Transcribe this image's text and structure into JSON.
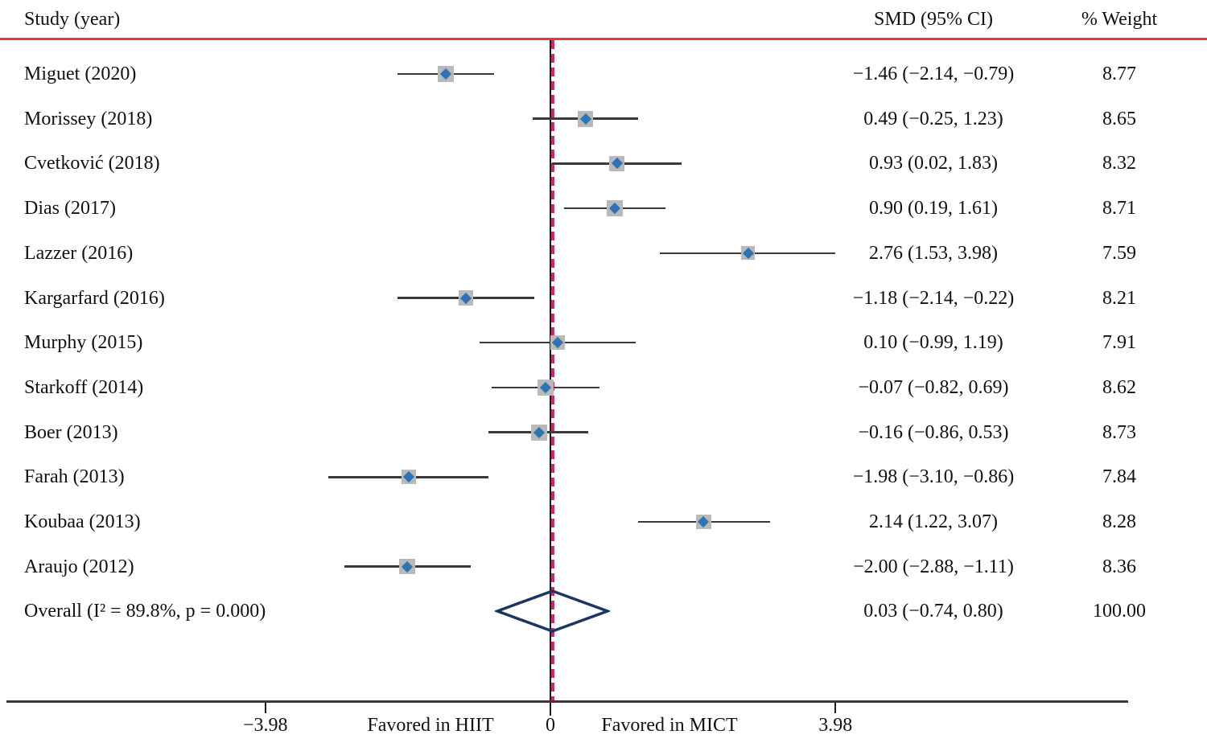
{
  "chart_data": {
    "type": "forest",
    "title": "",
    "columns": {
      "study": "Study (year)",
      "smd": "SMD (95% CI)",
      "weight": "% Weight"
    },
    "axis": {
      "min": -3.98,
      "max": 3.98,
      "zero_line": 0,
      "ticks": [
        {
          "value": -3.98,
          "label": "−3.98"
        },
        {
          "value": 0,
          "label": "0"
        },
        {
          "value": 3.98,
          "label": "3.98"
        }
      ],
      "left_region_label": "Favored in HIIT",
      "right_region_label": "Favored in MICT"
    },
    "studies": [
      {
        "label": "Miguet (2020)",
        "smd": -1.46,
        "ci_low": -2.14,
        "ci_high": -0.79,
        "smd_text": "−1.46 (−2.14, −0.79)",
        "weight": 8.77,
        "weight_text": "8.77"
      },
      {
        "label": "Morissey (2018)",
        "smd": 0.49,
        "ci_low": -0.25,
        "ci_high": 1.23,
        "smd_text": "0.49 (−0.25, 1.23)",
        "weight": 8.65,
        "weight_text": "8.65"
      },
      {
        "label": "Cvetković (2018)",
        "smd": 0.93,
        "ci_low": 0.02,
        "ci_high": 1.83,
        "smd_text": "0.93 (0.02, 1.83)",
        "weight": 8.32,
        "weight_text": "8.32"
      },
      {
        "label": "Dias (2017)",
        "smd": 0.9,
        "ci_low": 0.19,
        "ci_high": 1.61,
        "smd_text": "0.90 (0.19, 1.61)",
        "weight": 8.71,
        "weight_text": "8.71"
      },
      {
        "label": "Lazzer (2016)",
        "smd": 2.76,
        "ci_low": 1.53,
        "ci_high": 3.98,
        "smd_text": "2.76 (1.53, 3.98)",
        "weight": 7.59,
        "weight_text": "7.59"
      },
      {
        "label": "Kargarfard (2016)",
        "smd": -1.18,
        "ci_low": -2.14,
        "ci_high": -0.22,
        "smd_text": "−1.18 (−2.14, −0.22)",
        "weight": 8.21,
        "weight_text": "8.21"
      },
      {
        "label": "Murphy (2015)",
        "smd": 0.1,
        "ci_low": -0.99,
        "ci_high": 1.19,
        "smd_text": "0.10 (−0.99, 1.19)",
        "weight": 7.91,
        "weight_text": "7.91"
      },
      {
        "label": "Starkoff (2014)",
        "smd": -0.07,
        "ci_low": -0.82,
        "ci_high": 0.69,
        "smd_text": "−0.07 (−0.82, 0.69)",
        "weight": 8.62,
        "weight_text": "8.62"
      },
      {
        "label": "Boer (2013)",
        "smd": -0.16,
        "ci_low": -0.86,
        "ci_high": 0.53,
        "smd_text": "−0.16 (−0.86, 0.53)",
        "weight": 8.73,
        "weight_text": "8.73"
      },
      {
        "label": "Farah (2013)",
        "smd": -1.98,
        "ci_low": -3.1,
        "ci_high": -0.86,
        "smd_text": "−1.98 (−3.10, −0.86)",
        "weight": 7.84,
        "weight_text": "7.84"
      },
      {
        "label": "Koubaa (2013)",
        "smd": 2.14,
        "ci_low": 1.22,
        "ci_high": 3.07,
        "smd_text": "2.14 (1.22, 3.07)",
        "weight": 8.28,
        "weight_text": "8.28"
      },
      {
        "label": "Araujo (2012)",
        "smd": -2.0,
        "ci_low": -2.88,
        "ci_high": -1.11,
        "smd_text": "−2.00 (−2.88, −1.11)",
        "weight": 8.36,
        "weight_text": "8.36"
      }
    ],
    "overall": {
      "label": "Overall  (I² = 89.8%, p = 0.000)",
      "i_squared": "89.8%",
      "p_value": "0.000",
      "smd": 0.03,
      "ci_low": -0.74,
      "ci_high": 0.8,
      "smd_text": "0.03 (−0.74, 0.80)",
      "weight_text": "100.00"
    }
  },
  "figure": {
    "colors": {
      "red_line": "#e5383b",
      "zero_dash": "#d6246d",
      "line": "#3a3a3a",
      "vertical_line": "#1a1a1a",
      "square": "#b9b9b9",
      "marker": "#2e74b5",
      "diamond": "#1c3563",
      "text": "#111111"
    }
  }
}
